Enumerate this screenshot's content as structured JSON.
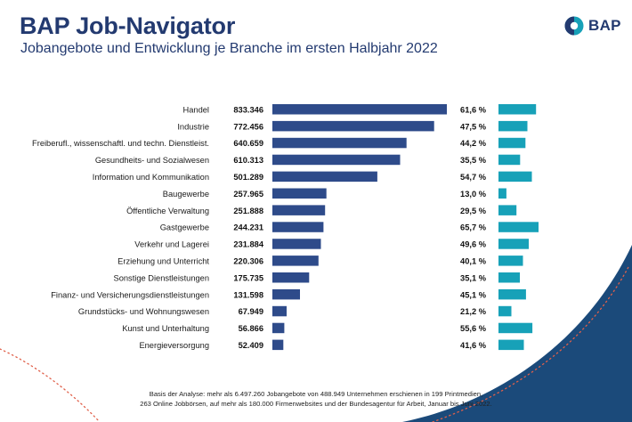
{
  "header": {
    "title": "BAP Job-Navigator",
    "subtitle": "Jobangebote und Entwicklung je Branche im ersten Halbjahr 2022",
    "logo_text": "BAP"
  },
  "footnote": {
    "line1": "Basis der Analyse: mehr als 6.497.260 Jobangebote von 488.949 Unternehmen erschienen in 199 Printmedien,",
    "line2": "263 Online Jobbörsen, auf mehr als 180.000 Firmenwebsites und der Bundesagentur für Arbeit, Januar bis Juni 2022."
  },
  "colors": {
    "navy": "#2e4b8a",
    "teal": "#17a1b8",
    "title": "#233a70",
    "corner": "#1b4a7a",
    "dots": "#e0604a"
  },
  "chart_data": {
    "type": "bar",
    "orientation": "horizontal",
    "title": "",
    "categories": [
      "Handel",
      "Industrie",
      "Freiberufl., wissenschaftl. und techn. Dienstleist.",
      "Gesundheits- und Sozialwesen",
      "Information und Kommunikation",
      "Baugewerbe",
      "Öffentliche Verwaltung",
      "Gastgewerbe",
      "Verkehr und Lagerei",
      "Erziehung und Unterricht",
      "Sonstige Dienstleistungen",
      "Finanz- und Versicherungsdienstleistungen",
      "Grundstücks- und Wohnungswesen",
      "Kunst und Unterhaltung",
      "Energieversorgung"
    ],
    "series": [
      {
        "values": [
          833346,
          772456,
          640659,
          610313,
          501289,
          257965,
          251888,
          244231,
          231884,
          220306,
          175735,
          131598,
          67949,
          56866,
          52409
        ],
        "labels": [
          "833.346",
          "772.456",
          "640.659",
          "610.313",
          "501.289",
          "257.965",
          "251.888",
          "244.231",
          "231.884",
          "220.306",
          "175.735",
          "131.598",
          "67.949",
          "56.866",
          "52.409"
        ]
      },
      {
        "values": [
          61.6,
          47.5,
          44.2,
          35.5,
          54.7,
          13.0,
          29.5,
          65.7,
          49.6,
          40.1,
          35.1,
          45.1,
          21.2,
          55.6,
          41.6
        ],
        "labels": [
          "61,6 %",
          "47,5 %",
          "44,2 %",
          "35,5 %",
          "54,7 %",
          "13,0 %",
          "29,5 %",
          "65,7 %",
          "49,6 %",
          "40,1 %",
          "35,1 %",
          "45,1 %",
          "21,2 %",
          "55,6 %",
          "41,6 %"
        ]
      }
    ],
    "xlim": [
      0,
      833346
    ],
    "xlim_pct": [
      0,
      65.7
    ],
    "grid": false,
    "legend": "none"
  }
}
